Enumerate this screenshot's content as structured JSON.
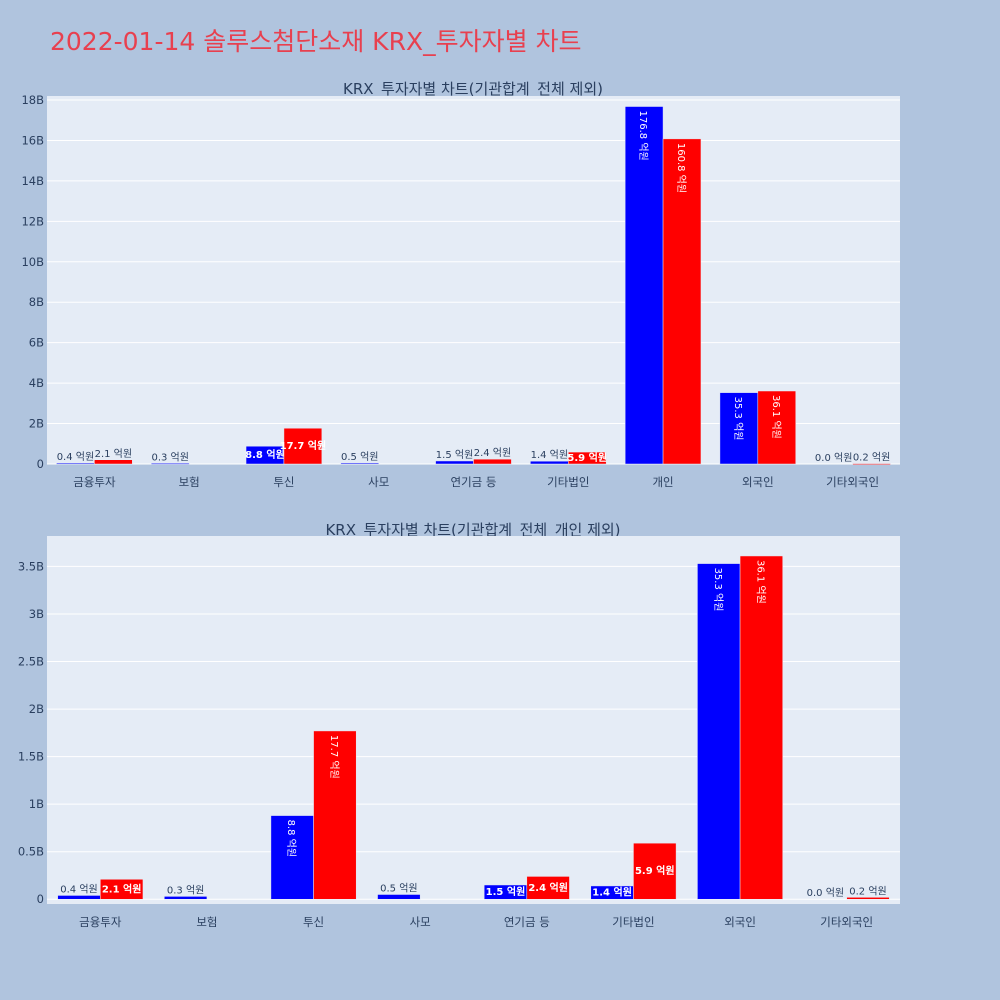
{
  "page_title": "2022-01-14 솔루스첨단소재 KRX_투자자별 차트",
  "colors": {
    "background": "#b0c4de",
    "plot_bg": "#e5ecf6",
    "title": "#e8404f",
    "series_a": "#0000ff",
    "series_b": "#ff0000"
  },
  "chart_data": [
    {
      "type": "bar",
      "title": "KRX_투자자별 차트(기관합계_전체 제외)",
      "categories": [
        "금융투자",
        "보험",
        "투신",
        "사모",
        "연기금 등",
        "기타법인",
        "개인",
        "외국인",
        "기타외국인"
      ],
      "ylim": [
        0,
        18200000000
      ],
      "yticks": [
        0,
        2000000000,
        4000000000,
        6000000000,
        8000000000,
        10000000000,
        12000000000,
        14000000000,
        16000000000,
        18000000000
      ],
      "ytick_labels": [
        "0",
        "2B",
        "4B",
        "6B",
        "8B",
        "10B",
        "12B",
        "14B",
        "16B",
        "18B"
      ],
      "grid": true,
      "series": [
        {
          "values": [
            40000000,
            30000000,
            880000000,
            50000000,
            150000000,
            140000000,
            17680000000,
            3530000000,
            0
          ],
          "labels": [
            "0.4 억원",
            "0.3 억원",
            "8.8 억원",
            "0.5 억원",
            "1.5 억원",
            "1.4 억원",
            "176.8 억원",
            "35.3 억원",
            "0.0 억원"
          ]
        },
        {
          "values": [
            210000000,
            0,
            1770000000,
            0,
            240000000,
            590000000,
            16080000000,
            3610000000,
            20000000
          ],
          "labels": [
            "2.1 억원",
            "",
            "17.7 억원",
            "",
            "2.4 억원",
            "5.9 억원",
            "160.8 억원",
            "36.1 억원",
            "0.2 억원"
          ]
        }
      ]
    },
    {
      "type": "bar",
      "title": "KRX_투자자별 차트(기관합계_전체_개인 제외)",
      "categories": [
        "금융투자",
        "보험",
        "투신",
        "사모",
        "연기금 등",
        "기타법인",
        "외국인",
        "기타외국인"
      ],
      "ylim": [
        -50000000,
        3820000000
      ],
      "yticks": [
        0,
        500000000,
        1000000000,
        1500000000,
        2000000000,
        2500000000,
        3000000000,
        3500000000
      ],
      "ytick_labels": [
        "0",
        "0.5B",
        "1B",
        "1.5B",
        "2B",
        "2.5B",
        "3B",
        "3.5B"
      ],
      "grid": true,
      "series": [
        {
          "values": [
            40000000,
            30000000,
            880000000,
            50000000,
            150000000,
            140000000,
            3530000000,
            0
          ],
          "labels": [
            "0.4 억원",
            "0.3 억원",
            "8.8 억원",
            "0.5 억원",
            "1.5 억원",
            "1.4 억원",
            "35.3 억원",
            "0.0 억원"
          ]
        },
        {
          "values": [
            210000000,
            0,
            1770000000,
            0,
            240000000,
            590000000,
            3610000000,
            20000000
          ],
          "labels": [
            "2.1 억원",
            "",
            "17.7 억원",
            "",
            "2.4 억원",
            "5.9 억원",
            "36.1 억원",
            "0.2 억원"
          ]
        }
      ]
    }
  ]
}
